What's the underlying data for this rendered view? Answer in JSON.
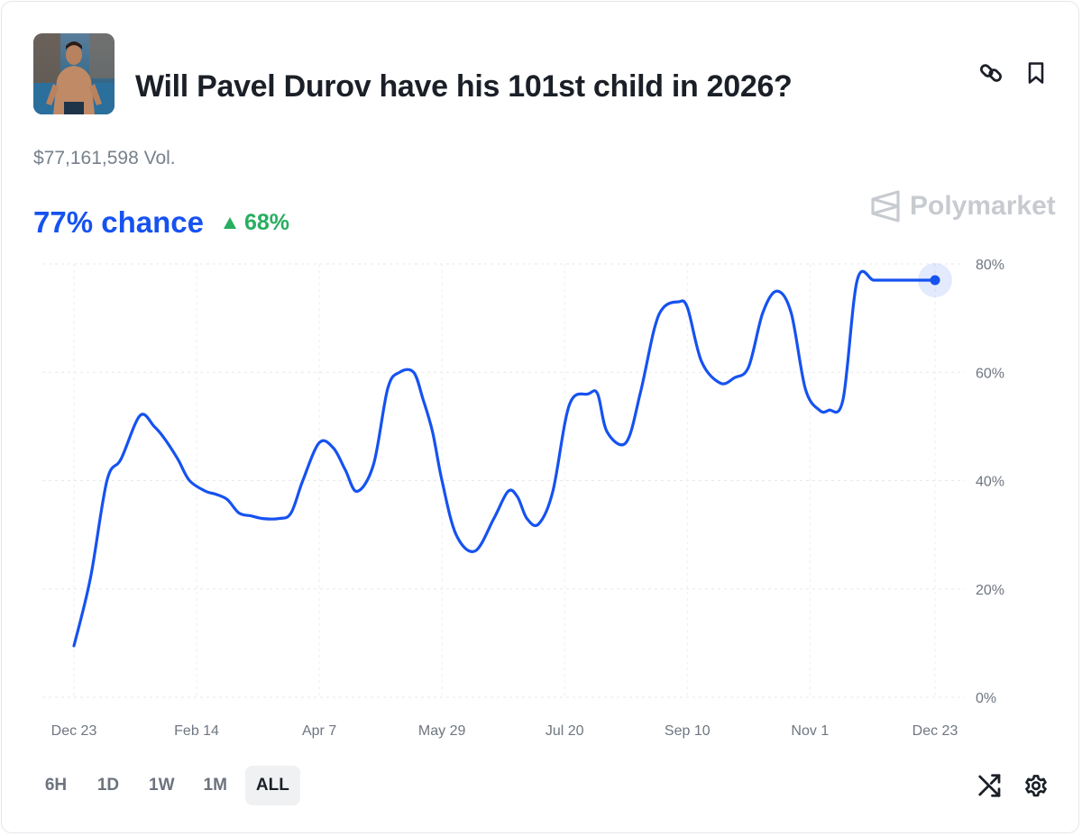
{
  "market": {
    "title": "Will Pavel Durov have his 101st child in 2026?",
    "volume": "$77,161,598 Vol.",
    "chance": "77% chance",
    "change": "68%"
  },
  "brand": {
    "name": "Polymarket"
  },
  "actions": {
    "link_icon": "link-icon",
    "bookmark_icon": "bookmark-icon",
    "swap_icon": "shuffle-icon",
    "settings_icon": "gear-icon"
  },
  "ranges": [
    {
      "label": "6H",
      "active": false
    },
    {
      "label": "1D",
      "active": false
    },
    {
      "label": "1W",
      "active": false
    },
    {
      "label": "1M",
      "active": false
    },
    {
      "label": "ALL",
      "active": true
    }
  ],
  "colors": {
    "accent": "#1652f0",
    "positive": "#27ae60",
    "muted": "#6f7680",
    "brand": "#c7cbd0"
  },
  "chart_data": {
    "type": "line",
    "ylim": [
      0,
      80
    ],
    "y_ticks": [
      0,
      20,
      40,
      60,
      80
    ],
    "y_tick_labels": [
      "0%",
      "20%",
      "40%",
      "60%",
      "80%"
    ],
    "x_tick_labels": [
      "Dec 23",
      "Feb 14",
      "Apr 7",
      "May 29",
      "Jul 20",
      "Sep 10",
      "Nov 1",
      "Dec 23"
    ],
    "x_range": [
      0,
      365
    ],
    "x_ticks": [
      0,
      52,
      104,
      156,
      208,
      260,
      312,
      365
    ],
    "grid": true,
    "series": [
      {
        "color": "#1652f0",
        "x": [
          0,
          7,
          14,
          20,
          28,
          34,
          38,
          44,
          49,
          56,
          60,
          65,
          70,
          75,
          80,
          87,
          92,
          97,
          104,
          110,
          115,
          120,
          127,
          133,
          138,
          144,
          148,
          152,
          156,
          162,
          170,
          178,
          184,
          188,
          192,
          197,
          203,
          210,
          218,
          222,
          226,
          234,
          240,
          246,
          250,
          256,
          260,
          266,
          274,
          280,
          286,
          292,
          298,
          304,
          310,
          316,
          320,
          326,
          332,
          339,
          345,
          350,
          355,
          360,
          365
        ],
        "y": [
          9.5,
          22,
          40,
          44,
          52,
          50,
          48,
          44,
          40,
          38,
          37.5,
          36.5,
          34,
          33.5,
          33,
          33,
          34,
          40,
          47,
          46,
          42,
          38,
          43,
          57,
          60,
          60,
          55,
          49,
          40,
          30,
          27,
          33,
          38,
          37,
          33,
          32,
          38,
          54,
          56,
          56,
          49,
          47,
          56,
          68,
          72,
          73,
          72,
          62,
          58,
          59,
          61,
          71,
          75,
          71,
          57,
          53,
          53,
          55,
          77,
          77,
          77,
          77,
          77,
          77,
          77
        ]
      }
    ]
  }
}
